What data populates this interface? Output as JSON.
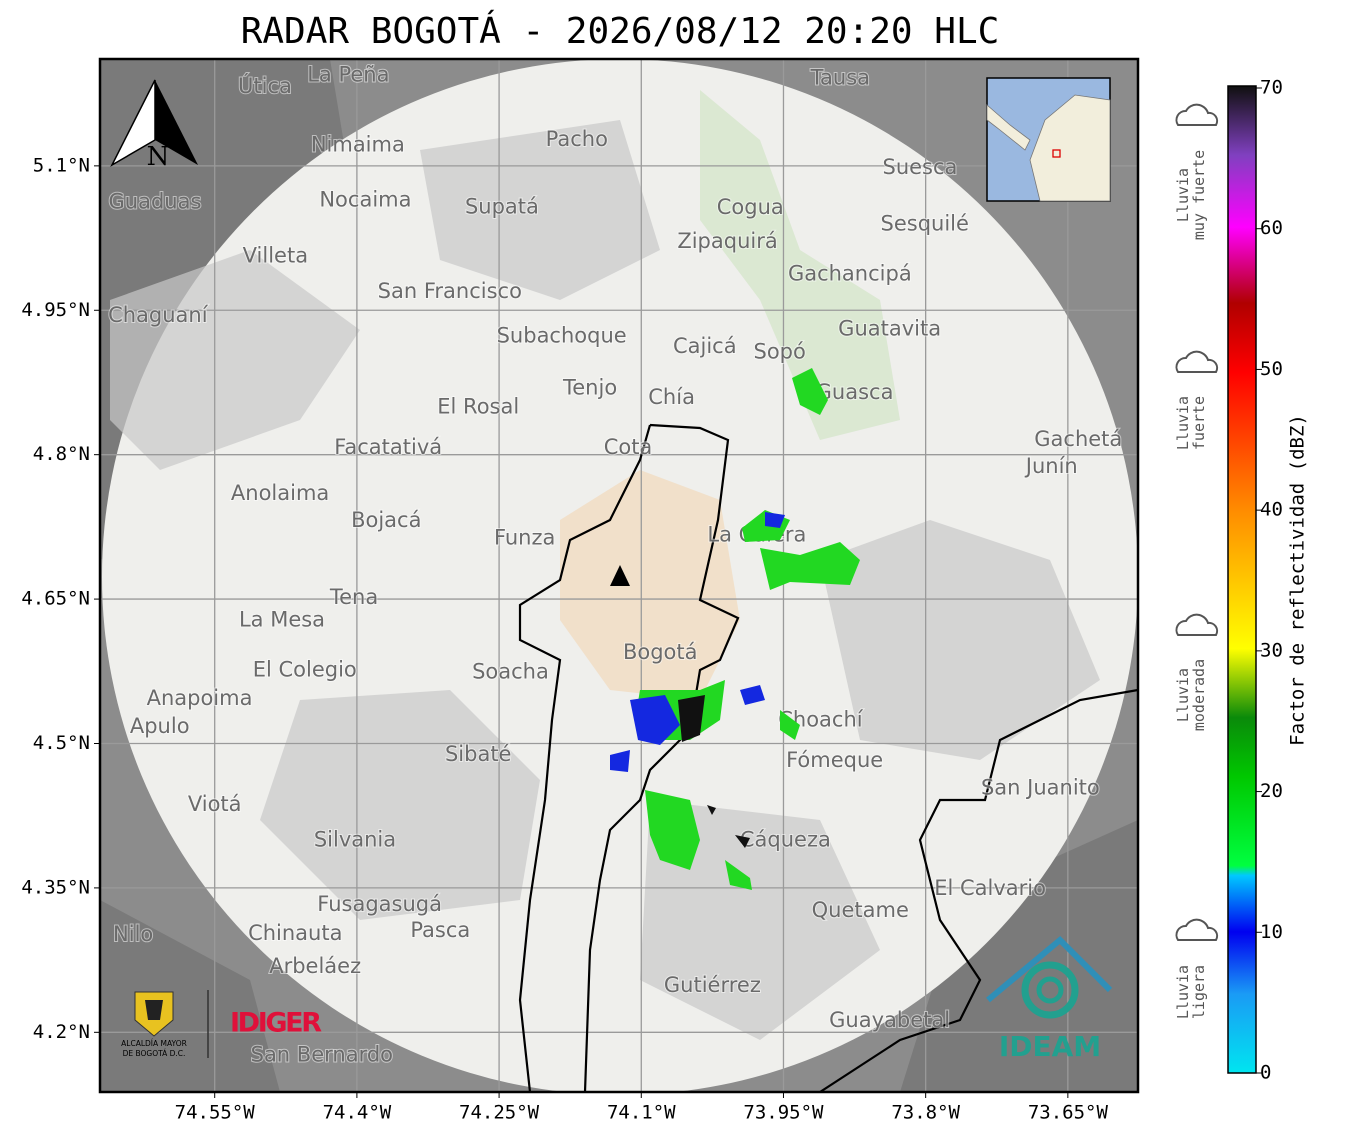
{
  "title": "RADAR BOGOTÁ - 2026/08/12 20:20 HLC",
  "map": {
    "xlim": [
      -74.671,
      -73.576
    ],
    "ylim": [
      4.138,
      5.211
    ],
    "xticks": [
      {
        "value": -74.55,
        "label": "74.55°W"
      },
      {
        "value": -74.4,
        "label": "74.4°W"
      },
      {
        "value": -74.25,
        "label": "74.25°W"
      },
      {
        "value": -74.1,
        "label": "74.1°W"
      },
      {
        "value": -73.95,
        "label": "73.95°W"
      },
      {
        "value": -73.8,
        "label": "73.8°W"
      },
      {
        "value": -73.65,
        "label": "73.65°W"
      }
    ],
    "yticks": [
      {
        "value": 4.2,
        "label": "4.2°N"
      },
      {
        "value": 4.35,
        "label": "4.35°N"
      },
      {
        "value": 4.5,
        "label": "4.5°N"
      },
      {
        "value": 4.65,
        "label": "4.65°N"
      },
      {
        "value": 4.8,
        "label": "4.8°N"
      },
      {
        "value": 4.95,
        "label": "4.95°N"
      },
      {
        "value": 5.1,
        "label": "5.1°N"
      }
    ],
    "grid": true,
    "places": [
      {
        "name": "La Peña",
        "lon": -74.409,
        "lat": 5.194
      },
      {
        "name": "Útica",
        "lon": -74.497,
        "lat": 5.182
      },
      {
        "name": "Tausa",
        "lon": -73.89,
        "lat": 5.191
      },
      {
        "name": "Pacho",
        "lon": -74.168,
        "lat": 5.127
      },
      {
        "name": "Nimaima",
        "lon": -74.399,
        "lat": 5.121
      },
      {
        "name": "Guaduas",
        "lon": -74.613,
        "lat": 5.062
      },
      {
        "name": "Nocaima",
        "lon": -74.391,
        "lat": 5.064
      },
      {
        "name": "Supatá",
        "lon": -74.247,
        "lat": 5.057
      },
      {
        "name": "Suesca",
        "lon": -73.806,
        "lat": 5.098
      },
      {
        "name": "Cogua",
        "lon": -73.985,
        "lat": 5.056
      },
      {
        "name": "Sesquilé",
        "lon": -73.801,
        "lat": 5.039
      },
      {
        "name": "Zipaquirá",
        "lon": -74.009,
        "lat": 5.021
      },
      {
        "name": "Villeta",
        "lon": -74.486,
        "lat": 5.006
      },
      {
        "name": "Gachancipá",
        "lon": -73.88,
        "lat": 4.987
      },
      {
        "name": "San Francisco",
        "lon": -74.302,
        "lat": 4.969
      },
      {
        "name": "Chaguaní",
        "lon": -74.61,
        "lat": 4.944
      },
      {
        "name": "Guatavita",
        "lon": -73.838,
        "lat": 4.93
      },
      {
        "name": "Subachoque",
        "lon": -74.184,
        "lat": 4.923
      },
      {
        "name": "Cajicá",
        "lon": -74.033,
        "lat": 4.912
      },
      {
        "name": "Sopó",
        "lon": -73.954,
        "lat": 4.906
      },
      {
        "name": "Tenjo",
        "lon": -74.154,
        "lat": 4.869
      },
      {
        "name": "Chía",
        "lon": -74.068,
        "lat": 4.859
      },
      {
        "name": "El Rosal",
        "lon": -74.272,
        "lat": 4.849
      },
      {
        "name": "Guasca",
        "lon": -73.875,
        "lat": 4.864
      },
      {
        "name": "Facatativá",
        "lon": -74.367,
        "lat": 4.807
      },
      {
        "name": "Cota",
        "lon": -74.114,
        "lat": 4.807
      },
      {
        "name": "Gachetá",
        "lon": -73.639,
        "lat": 4.815
      },
      {
        "name": "Junín",
        "lon": -73.667,
        "lat": 4.787
      },
      {
        "name": "Anolaima",
        "lon": -74.481,
        "lat": 4.759
      },
      {
        "name": "Bojacá",
        "lon": -74.369,
        "lat": 4.731
      },
      {
        "name": "Funza",
        "lon": -74.223,
        "lat": 4.713
      },
      {
        "name": "La Calera",
        "lon": -73.978,
        "lat": 4.716
      },
      {
        "name": "Tena",
        "lon": -74.403,
        "lat": 4.651
      },
      {
        "name": "La Mesa",
        "lon": -74.479,
        "lat": 4.628
      },
      {
        "name": "Bogotá",
        "lon": -74.08,
        "lat": 4.594
      },
      {
        "name": "Soacha",
        "lon": -74.238,
        "lat": 4.574
      },
      {
        "name": "El Colegio",
        "lon": -74.455,
        "lat": 4.576
      },
      {
        "name": "Anapoima",
        "lon": -74.566,
        "lat": 4.546
      },
      {
        "name": "Apulo",
        "lon": -74.608,
        "lat": 4.517
      },
      {
        "name": "Choachí",
        "lon": -73.911,
        "lat": 4.524
      },
      {
        "name": "Sibaté",
        "lon": -74.272,
        "lat": 4.488
      },
      {
        "name": "Fómeque",
        "lon": -73.896,
        "lat": 4.482
      },
      {
        "name": "San Juanito",
        "lon": -73.679,
        "lat": 4.453
      },
      {
        "name": "Viotá",
        "lon": -74.55,
        "lat": 4.436
      },
      {
        "name": "Silvania",
        "lon": -74.402,
        "lat": 4.399
      },
      {
        "name": "Cáqueza",
        "lon": -73.948,
        "lat": 4.399
      },
      {
        "name": "El Calvario",
        "lon": -73.732,
        "lat": 4.349
      },
      {
        "name": "Fusagasugá",
        "lon": -74.376,
        "lat": 4.332
      },
      {
        "name": "Quetame",
        "lon": -73.869,
        "lat": 4.326
      },
      {
        "name": "Chinauta",
        "lon": -74.465,
        "lat": 4.302
      },
      {
        "name": "Pasca",
        "lon": -74.312,
        "lat": 4.305
      },
      {
        "name": "Nilo",
        "lon": -74.636,
        "lat": 4.301
      },
      {
        "name": "Arbeláez",
        "lon": -74.444,
        "lat": 4.268
      },
      {
        "name": "Gutiérrez",
        "lon": -74.025,
        "lat": 4.248
      },
      {
        "name": "Guayabetal",
        "lon": -73.838,
        "lat": 4.212
      },
      {
        "name": "San Bernardo",
        "lon": -74.437,
        "lat": 4.176
      }
    ],
    "north": "N"
  },
  "colorbar": {
    "lim": [
      0,
      70
    ],
    "ticks": [
      0,
      10,
      20,
      30,
      40,
      50,
      60,
      70
    ],
    "label": "Factor de reflectividad (dBZ)"
  },
  "rain_levels": [
    [
      "Lluvia",
      "muy fuerte"
    ],
    [
      "Lluvia",
      "fuerte"
    ],
    [
      "Lluvia",
      "moderada"
    ],
    [
      "Lluvia",
      "ligera"
    ]
  ],
  "logos": {
    "idiger": "IDIGER",
    "ideam": "IDEAM",
    "alcaldia": [
      "ALCALDÍA MAYOR",
      "DE BOGOTÁ D.C."
    ]
  }
}
